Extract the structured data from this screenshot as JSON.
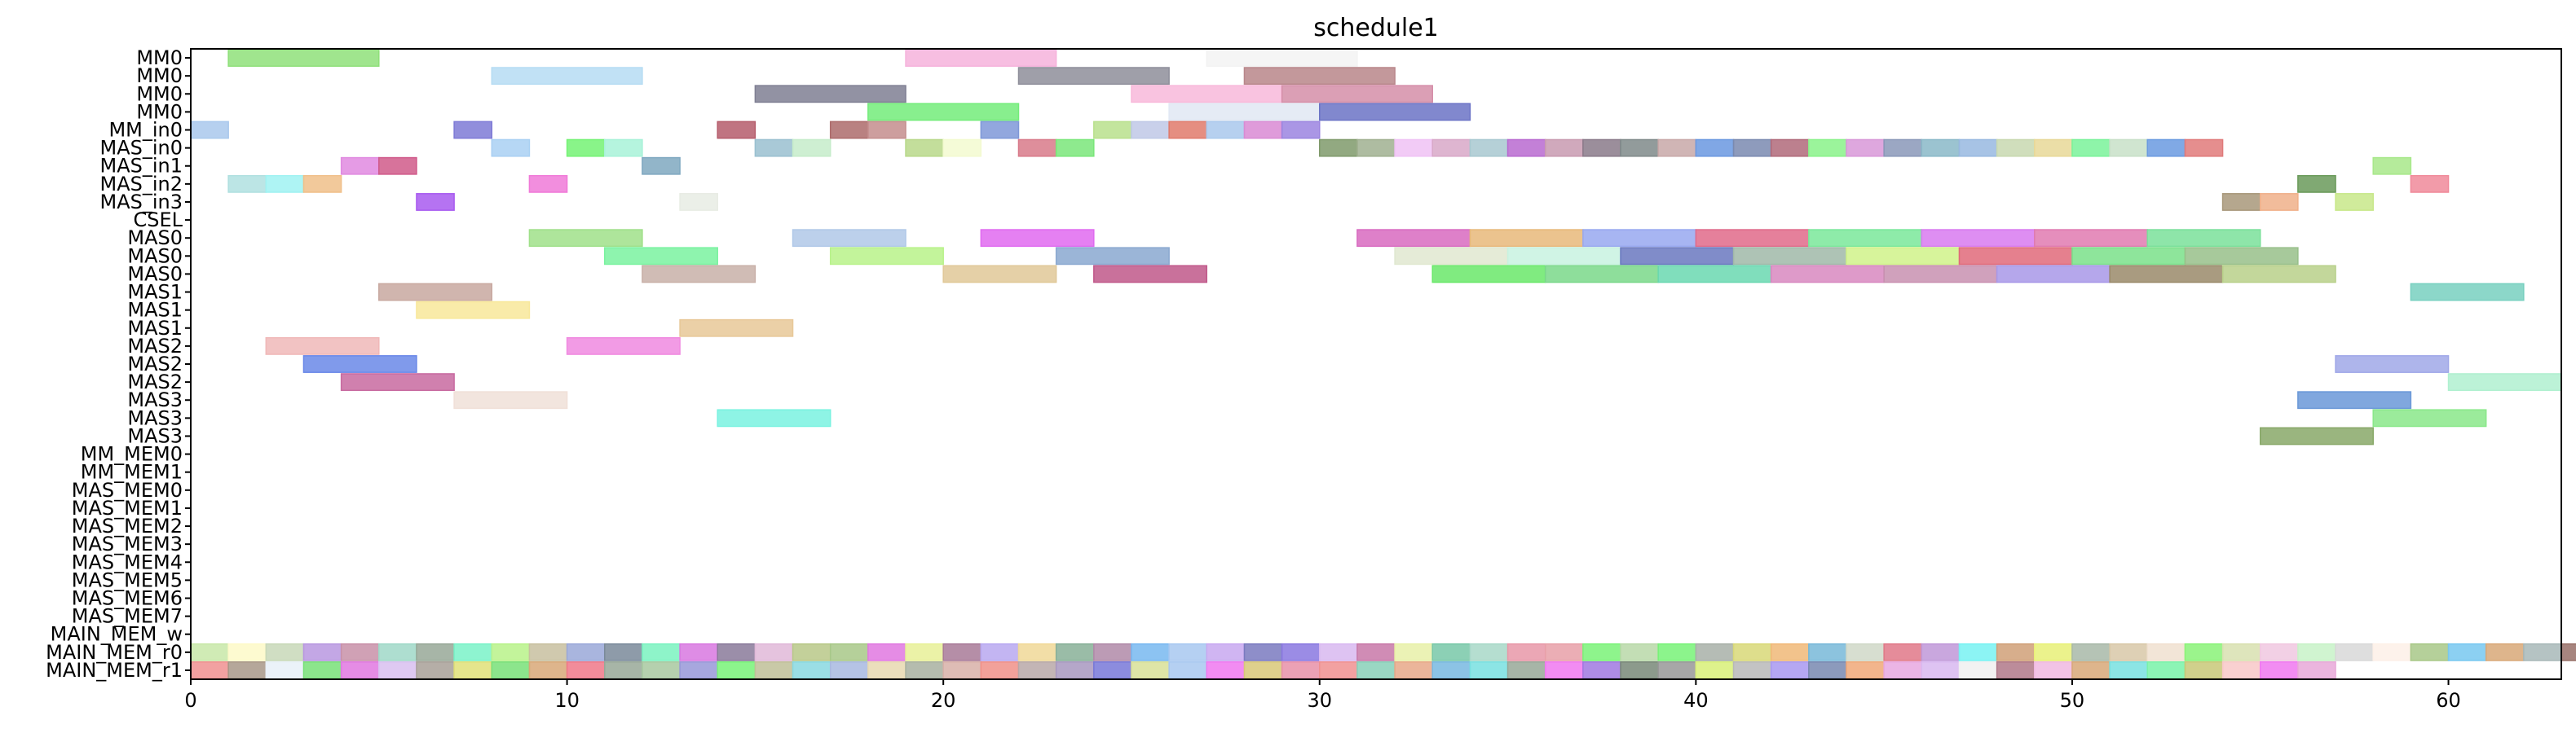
{
  "chart_data": {
    "type": "gantt",
    "title": "schedule1",
    "xlim": [
      0,
      63
    ],
    "x_ticks": [
      0,
      10,
      20,
      30,
      40,
      50,
      60
    ],
    "grid": false,
    "rows": [
      "MM0",
      "MM0",
      "MM0",
      "MM0",
      "MM_in0",
      "MAS_in0",
      "MAS_in1",
      "MAS_in2",
      "MAS_in3",
      "CSEL",
      "MAS0",
      "MAS0",
      "MAS0",
      "MAS1",
      "MAS1",
      "MAS1",
      "MAS2",
      "MAS2",
      "MAS2",
      "MAS3",
      "MAS3",
      "MAS3",
      "MM_MEM0",
      "MM_MEM1",
      "MAS_MEM0",
      "MAS_MEM1",
      "MAS_MEM2",
      "MAS_MEM3",
      "MAS_MEM4",
      "MAS_MEM5",
      "MAS_MEM6",
      "MAS_MEM7",
      "MAIN_MEM_w",
      "MAIN_MEM_r0",
      "MAIN_MEM_r1"
    ],
    "tasks": [
      {
        "row": 0,
        "start": 1,
        "end": 5,
        "color": "#8fe07a"
      },
      {
        "row": 0,
        "start": 19,
        "end": 23,
        "color": "#f6b3dc"
      },
      {
        "row": 0,
        "start": 27,
        "end": 31,
        "color": "#f3f3f3"
      },
      {
        "row": 1,
        "start": 8,
        "end": 12,
        "color": "#b6dcf3"
      },
      {
        "row": 1,
        "start": 22,
        "end": 26,
        "color": "#8e8e9a"
      },
      {
        "row": 1,
        "start": 28,
        "end": 32,
        "color": "#b8868a"
      },
      {
        "row": 2,
        "start": 15,
        "end": 19,
        "color": "#7f7f93"
      },
      {
        "row": 2,
        "start": 25,
        "end": 29,
        "color": "#f8b9da"
      },
      {
        "row": 2,
        "start": 29,
        "end": 33,
        "color": "#d58ea8"
      },
      {
        "row": 3,
        "start": 18,
        "end": 22,
        "color": "#73ec7a"
      },
      {
        "row": 3,
        "start": 26,
        "end": 30,
        "color": "#e1e8f3"
      },
      {
        "row": 3,
        "start": 30,
        "end": 34,
        "color": "#6b73c6"
      },
      {
        "row": 4,
        "start": 0,
        "end": 1,
        "color": "#a9c8ec"
      },
      {
        "row": 4,
        "start": 7,
        "end": 8,
        "color": "#7e7ad6"
      },
      {
        "row": 4,
        "start": 14,
        "end": 15,
        "color": "#b55c6b"
      },
      {
        "row": 4,
        "start": 17,
        "end": 18,
        "color": "#ad6b6b"
      },
      {
        "row": 4,
        "start": 18,
        "end": 19,
        "color": "#c48d8d"
      },
      {
        "row": 4,
        "start": 21,
        "end": 22,
        "color": "#7f98d8"
      },
      {
        "row": 4,
        "start": 24,
        "end": 25,
        "color": "#b8e08c"
      },
      {
        "row": 4,
        "start": 25,
        "end": 26,
        "color": "#bfc8e6"
      },
      {
        "row": 4,
        "start": 26,
        "end": 27,
        "color": "#e07a6b"
      },
      {
        "row": 4,
        "start": 27,
        "end": 28,
        "color": "#a9c8ec"
      },
      {
        "row": 4,
        "start": 28,
        "end": 29,
        "color": "#d98ad4"
      },
      {
        "row": 4,
        "start": 29,
        "end": 30,
        "color": "#9b84e0"
      },
      {
        "row": 5,
        "start": 8,
        "end": 9,
        "color": "#a9d0f3"
      },
      {
        "row": 5,
        "start": 10,
        "end": 11,
        "color": "#74f274"
      },
      {
        "row": 5,
        "start": 11,
        "end": 12,
        "color": "#a8f2d8"
      },
      {
        "row": 5,
        "start": 15,
        "end": 16,
        "color": "#9ac0d0"
      },
      {
        "row": 5,
        "start": 16,
        "end": 17,
        "color": "#c6ecca"
      },
      {
        "row": 5,
        "start": 19,
        "end": 20,
        "color": "#b8d88a"
      },
      {
        "row": 5,
        "start": 20,
        "end": 21,
        "color": "#f3fad0"
      },
      {
        "row": 5,
        "start": 22,
        "end": 23,
        "color": "#d87a8a"
      },
      {
        "row": 5,
        "start": 23,
        "end": 24,
        "color": "#7ae67a"
      },
      {
        "row": 5,
        "start": 30,
        "end": 31,
        "color": "#7f9a6b"
      },
      {
        "row": 5,
        "start": 31,
        "end": 32,
        "color": "#a0b090"
      },
      {
        "row": 5,
        "start": 32,
        "end": 33,
        "color": "#f0c2f5"
      },
      {
        "row": 5,
        "start": 33,
        "end": 34,
        "color": "#d8a8c8"
      },
      {
        "row": 5,
        "start": 34,
        "end": 35,
        "color": "#a8c8d0"
      },
      {
        "row": 5,
        "start": 35,
        "end": 36,
        "color": "#b86ad0"
      },
      {
        "row": 5,
        "start": 36,
        "end": 37,
        "color": "#c89ab0"
      },
      {
        "row": 5,
        "start": 37,
        "end": 38,
        "color": "#8a7a8a"
      },
      {
        "row": 5,
        "start": 38,
        "end": 39,
        "color": "#7f8a8a"
      },
      {
        "row": 5,
        "start": 39,
        "end": 40,
        "color": "#c8a8a8"
      },
      {
        "row": 5,
        "start": 40,
        "end": 41,
        "color": "#6a98e0"
      },
      {
        "row": 5,
        "start": 41,
        "end": 42,
        "color": "#7a8ab0"
      },
      {
        "row": 5,
        "start": 42,
        "end": 43,
        "color": "#b06a7a"
      },
      {
        "row": 5,
        "start": 43,
        "end": 44,
        "color": "#8af28a"
      },
      {
        "row": 5,
        "start": 44,
        "end": 45,
        "color": "#d898d8"
      },
      {
        "row": 5,
        "start": 45,
        "end": 46,
        "color": "#8a98b8"
      },
      {
        "row": 5,
        "start": 46,
        "end": 47,
        "color": "#8ab8c8"
      },
      {
        "row": 5,
        "start": 47,
        "end": 48,
        "color": "#98b8e0"
      },
      {
        "row": 5,
        "start": 48,
        "end": 49,
        "color": "#c8d8b0"
      },
      {
        "row": 5,
        "start": 49,
        "end": 50,
        "color": "#e8d898"
      },
      {
        "row": 5,
        "start": 50,
        "end": 51,
        "color": "#7af29a"
      },
      {
        "row": 5,
        "start": 51,
        "end": 52,
        "color": "#c8e0c8"
      },
      {
        "row": 5,
        "start": 52,
        "end": 53,
        "color": "#6a9ae0"
      },
      {
        "row": 5,
        "start": 53,
        "end": 54,
        "color": "#e07a7a"
      },
      {
        "row": 6,
        "start": 12,
        "end": 13,
        "color": "#7fa8c0"
      },
      {
        "row": 6,
        "start": 58,
        "end": 59,
        "color": "#a8e88a"
      },
      {
        "row": 7,
        "start": 1,
        "end": 2,
        "color": "#b0e0e0"
      },
      {
        "row": 7,
        "start": 2,
        "end": 3,
        "color": "#a0f2f2"
      },
      {
        "row": 7,
        "start": 3,
        "end": 4,
        "color": "#f0c08a"
      },
      {
        "row": 7,
        "start": 9,
        "end": 10,
        "color": "#f07ad8"
      },
      {
        "row": 7,
        "start": 56,
        "end": 57,
        "color": "#6a9a5a"
      },
      {
        "row": 7,
        "start": 59,
        "end": 60,
        "color": "#f08a9a"
      },
      {
        "row": 8,
        "start": 6,
        "end": 7,
        "color": "#a85af0"
      },
      {
        "row": 8,
        "start": 13,
        "end": 14,
        "color": "#e8ece4"
      },
      {
        "row": 8,
        "start": 54,
        "end": 55,
        "color": "#a8987a"
      },
      {
        "row": 8,
        "start": 55,
        "end": 56,
        "color": "#f0b08a"
      },
      {
        "row": 8,
        "start": 57,
        "end": 58,
        "color": "#c8e88a"
      },
      {
        "row": 6,
        "start": 4,
        "end": 5,
        "color": "#e08ae0"
      },
      {
        "row": 6,
        "start": 5,
        "end": 6,
        "color": "#d05a8a"
      },
      {
        "row": 10,
        "start": 9,
        "end": 12,
        "color": "#a0e08a"
      },
      {
        "row": 10,
        "start": 16,
        "end": 19,
        "color": "#b0c8e8"
      },
      {
        "row": 10,
        "start": 21,
        "end": 24,
        "color": "#e06af0"
      },
      {
        "row": 10,
        "start": 31,
        "end": 34,
        "color": "#d86ac0"
      },
      {
        "row": 10,
        "start": 34,
        "end": 37,
        "color": "#e8b87a"
      },
      {
        "row": 10,
        "start": 37,
        "end": 40,
        "color": "#98a8f0"
      },
      {
        "row": 10,
        "start": 40,
        "end": 43,
        "color": "#e06a8a"
      },
      {
        "row": 10,
        "start": 43,
        "end": 46,
        "color": "#7ae89a"
      },
      {
        "row": 10,
        "start": 46,
        "end": 49,
        "color": "#d87af0"
      },
      {
        "row": 10,
        "start": 49,
        "end": 52,
        "color": "#e07ab0"
      },
      {
        "row": 10,
        "start": 52,
        "end": 55,
        "color": "#7ae09a"
      },
      {
        "row": 11,
        "start": 11,
        "end": 14,
        "color": "#7af2a0"
      },
      {
        "row": 11,
        "start": 17,
        "end": 20,
        "color": "#b8f28a"
      },
      {
        "row": 11,
        "start": 23,
        "end": 26,
        "color": "#8aa8d0"
      },
      {
        "row": 11,
        "start": 32,
        "end": 35,
        "color": "#e0e8d0"
      },
      {
        "row": 11,
        "start": 35,
        "end": 38,
        "color": "#c8f2e0"
      },
      {
        "row": 11,
        "start": 38,
        "end": 41,
        "color": "#6a78c0"
      },
      {
        "row": 11,
        "start": 41,
        "end": 44,
        "color": "#a0b8a8"
      },
      {
        "row": 11,
        "start": 44,
        "end": 47,
        "color": "#d0f28a"
      },
      {
        "row": 11,
        "start": 47,
        "end": 50,
        "color": "#e06a7a"
      },
      {
        "row": 11,
        "start": 50,
        "end": 53,
        "color": "#7ae08a"
      },
      {
        "row": 11,
        "start": 53,
        "end": 56,
        "color": "#98c08a"
      },
      {
        "row": 12,
        "start": 12,
        "end": 15,
        "color": "#c8b0a8"
      },
      {
        "row": 12,
        "start": 20,
        "end": 23,
        "color": "#e0c898"
      },
      {
        "row": 12,
        "start": 24,
        "end": 27,
        "color": "#c0588a"
      },
      {
        "row": 12,
        "start": 33,
        "end": 36,
        "color": "#6ae86a"
      },
      {
        "row": 12,
        "start": 36,
        "end": 39,
        "color": "#7ad88a"
      },
      {
        "row": 12,
        "start": 39,
        "end": 42,
        "color": "#6ad8b0"
      },
      {
        "row": 12,
        "start": 42,
        "end": 45,
        "color": "#d888c0"
      },
      {
        "row": 12,
        "start": 45,
        "end": 48,
        "color": "#c890b0"
      },
      {
        "row": 12,
        "start": 48,
        "end": 51,
        "color": "#a898e8"
      },
      {
        "row": 12,
        "start": 51,
        "end": 54,
        "color": "#9a8a6a"
      },
      {
        "row": 12,
        "start": 54,
        "end": 57,
        "color": "#b8d08a"
      },
      {
        "row": 13,
        "start": 5,
        "end": 8,
        "color": "#c8a8a0"
      },
      {
        "row": 13,
        "start": 59,
        "end": 62,
        "color": "#78d0c0"
      },
      {
        "row": 14,
        "start": 6,
        "end": 9,
        "color": "#f8e89a"
      },
      {
        "row": 15,
        "start": 13,
        "end": 16,
        "color": "#e8c898"
      },
      {
        "row": 16,
        "start": 2,
        "end": 5,
        "color": "#f0b8b8"
      },
      {
        "row": 16,
        "start": 10,
        "end": 13,
        "color": "#f08ae0"
      },
      {
        "row": 17,
        "start": 3,
        "end": 6,
        "color": "#6a88e8"
      },
      {
        "row": 17,
        "start": 57,
        "end": 60,
        "color": "#a0a8e8"
      },
      {
        "row": 18,
        "start": 4,
        "end": 7,
        "color": "#c86aa0"
      },
      {
        "row": 18,
        "start": 60,
        "end": 63,
        "color": "#b0f0d0"
      },
      {
        "row": 19,
        "start": 7,
        "end": 10,
        "color": "#f0e0d8"
      },
      {
        "row": 19,
        "start": 56,
        "end": 59,
        "color": "#6a98d8"
      },
      {
        "row": 20,
        "start": 14,
        "end": 17,
        "color": "#7af2e0"
      },
      {
        "row": 20,
        "start": 58,
        "end": 61,
        "color": "#8ae88a"
      },
      {
        "row": 21,
        "start": 55,
        "end": 58,
        "color": "#88a868"
      }
    ],
    "mem_rows": {
      "w": {
        "row": 33,
        "start": 0,
        "colors": [
          "#c8e8a8",
          "#fdf9c8",
          "#c8d8b8",
          "#b898e0",
          "#c890a8",
          "#a0d8c8",
          "#98a898",
          "#7af2c8",
          "#b8f28a",
          "#c8c0a0",
          "#9aa8d8",
          "#7a8a9a",
          "#7af2c0",
          "#d878e0",
          "#8a7a9a",
          "#e0b8d8",
          "#b8c888",
          "#a8c888",
          "#e078e0",
          "#e8f098",
          "#a87a98",
          "#b8a8f0",
          "#f0d898",
          "#88b098",
          "#b08aa8",
          "#78b8f0",
          "#a8c8f0",
          "#c8a8f0",
          "#7a7ac0",
          "#8a78e0",
          "#d8b8f0",
          "#c878a8",
          "#e8f0a8",
          "#78c8a8",
          "#a8d8c8",
          "#e898a8",
          "#e8a0a8",
          "#7af278",
          "#b8d8a8",
          "#78f278",
          "#a8b0a8",
          "#d8d878",
          "#f0b878",
          "#78b8d8",
          "#d0d8c8",
          "#e07888",
          "#c098d8",
          "#78f2f2",
          "#d0a078",
          "#e8f078",
          "#a8b8a8",
          "#d8c8a8",
          "#f0e0d0",
          "#8af278",
          "#d8e0b0",
          "#f0c8e0",
          "#c8f2c8",
          "#d8d8d8",
          "#fdf0e8",
          "#a8c888",
          "#78c8f0",
          "#d8a878",
          "#a8b8b8",
          "#987068",
          "#a8e0e8",
          "#d8e0d8",
          "#8898b8"
        ]
      },
      "r0": {
        "row": 33,
        "start": 0,
        "colors": []
      },
      "r1": {
        "row": 34,
        "start": 0,
        "colors": [
          "#f09090",
          "#a89888",
          "#e8f0f8",
          "#78e078",
          "#e078e0",
          "#d8c0f0",
          "#a8a098",
          "#e0e078",
          "#78e078",
          "#d8a878",
          "#f07888",
          "#98a898",
          "#a8c8a0",
          "#9898d8",
          "#78f278",
          "#c0c098",
          "#88d8e0",
          "#a8b8e0",
          "#e8d8b0",
          "#a8b0a0",
          "#d8b0a8",
          "#f09088",
          "#b8a8a8",
          "#a898c0",
          "#7878d8",
          "#d8e098",
          "#a8c8f0",
          "#f078f0",
          "#d8c878",
          "#e890a8",
          "#f09090",
          "#88d0b8",
          "#e8a888",
          "#78b8e0",
          "#78e0e0",
          "#98a898",
          "#f078f0",
          "#a078e0",
          "#788878",
          "#989898",
          "#d8f078",
          "#b8b8b8",
          "#a898f0",
          "#7888b0",
          "#f0a878",
          "#e8a8e0",
          "#d8b8f0",
          "#f0f0f0",
          "#b07888",
          "#f0b8e0",
          "#d8a878",
          "#78e0e0",
          "#78f2a8",
          "#c8c878",
          "#f8c8c8",
          "#f078f0",
          "#e8a8d8"
        ]
      }
    }
  }
}
